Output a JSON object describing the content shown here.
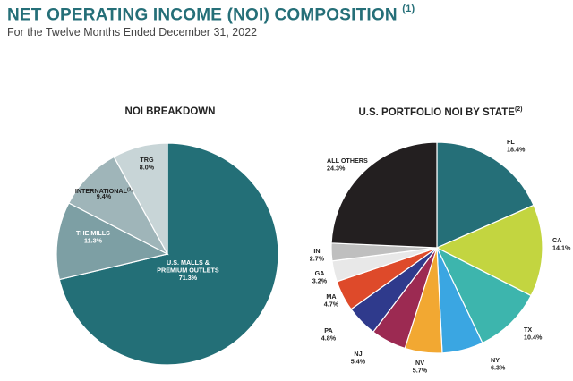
{
  "header": {
    "title": "NET OPERATING INCOME (NOI) COMPOSITION",
    "title_footnote": "(1)",
    "subtitle": "For the Twelve Months Ended December 31, 2022"
  },
  "chart_data": [
    {
      "type": "pie",
      "title": "NOI BREAKDOWN",
      "slices": [
        {
          "label": "U.S. MALLS & PREMIUM OUTLETS",
          "label_lines": [
            "U.S. MALLS &",
            "PREMIUM OUTLETS"
          ],
          "value": 71.3,
          "value_text": "71.3%",
          "color": "#236f77",
          "text_color": "#ffffff"
        },
        {
          "label": "THE MILLS",
          "label_lines": [
            "THE MILLS"
          ],
          "value": 11.3,
          "value_text": "11.3%",
          "color": "#7d9fa4",
          "text_color": "#ffffff"
        },
        {
          "label": "INTERNATIONAL",
          "label_lines": [
            "INTERNATIONAL"
          ],
          "footnote": "(3)",
          "value": 9.4,
          "value_text": "9.4%",
          "color": "#9fb5b9",
          "text_color": "#1e1e1e"
        },
        {
          "label": "TRG",
          "label_lines": [
            "TRG"
          ],
          "value": 8.0,
          "value_text": "8.0%",
          "color": "#c8d5d7",
          "text_color": "#1e1e1e"
        }
      ]
    },
    {
      "type": "pie",
      "title": "U.S. PORTFOLIO NOI BY STATE",
      "title_footnote": "(2)",
      "slices": [
        {
          "label": "FL",
          "value": 18.4,
          "value_text": "18.4%",
          "color": "#256f78"
        },
        {
          "label": "CA",
          "value": 14.1,
          "value_text": "14.1%",
          "color": "#c3d540"
        },
        {
          "label": "TX",
          "value": 10.4,
          "value_text": "10.4%",
          "color": "#3db5ad"
        },
        {
          "label": "NY",
          "value": 6.3,
          "value_text": "6.3%",
          "color": "#3aa6e2"
        },
        {
          "label": "NV",
          "value": 5.7,
          "value_text": "5.7%",
          "color": "#f2a832"
        },
        {
          "label": "NJ",
          "value": 5.4,
          "value_text": "5.4%",
          "color": "#9c2a52"
        },
        {
          "label": "PA",
          "value": 4.8,
          "value_text": "4.8%",
          "color": "#2f3a8c"
        },
        {
          "label": "MA",
          "value": 4.7,
          "value_text": "4.7%",
          "color": "#de4a2a"
        },
        {
          "label": "GA",
          "value": 3.2,
          "value_text": "3.2%",
          "color": "#e8e8e8"
        },
        {
          "label": "IN",
          "value": 2.7,
          "value_text": "2.7%",
          "color": "#bfbfbf"
        },
        {
          "label": "ALL OTHERS",
          "value": 24.3,
          "value_text": "24.3%",
          "color": "#231f20"
        }
      ]
    }
  ]
}
